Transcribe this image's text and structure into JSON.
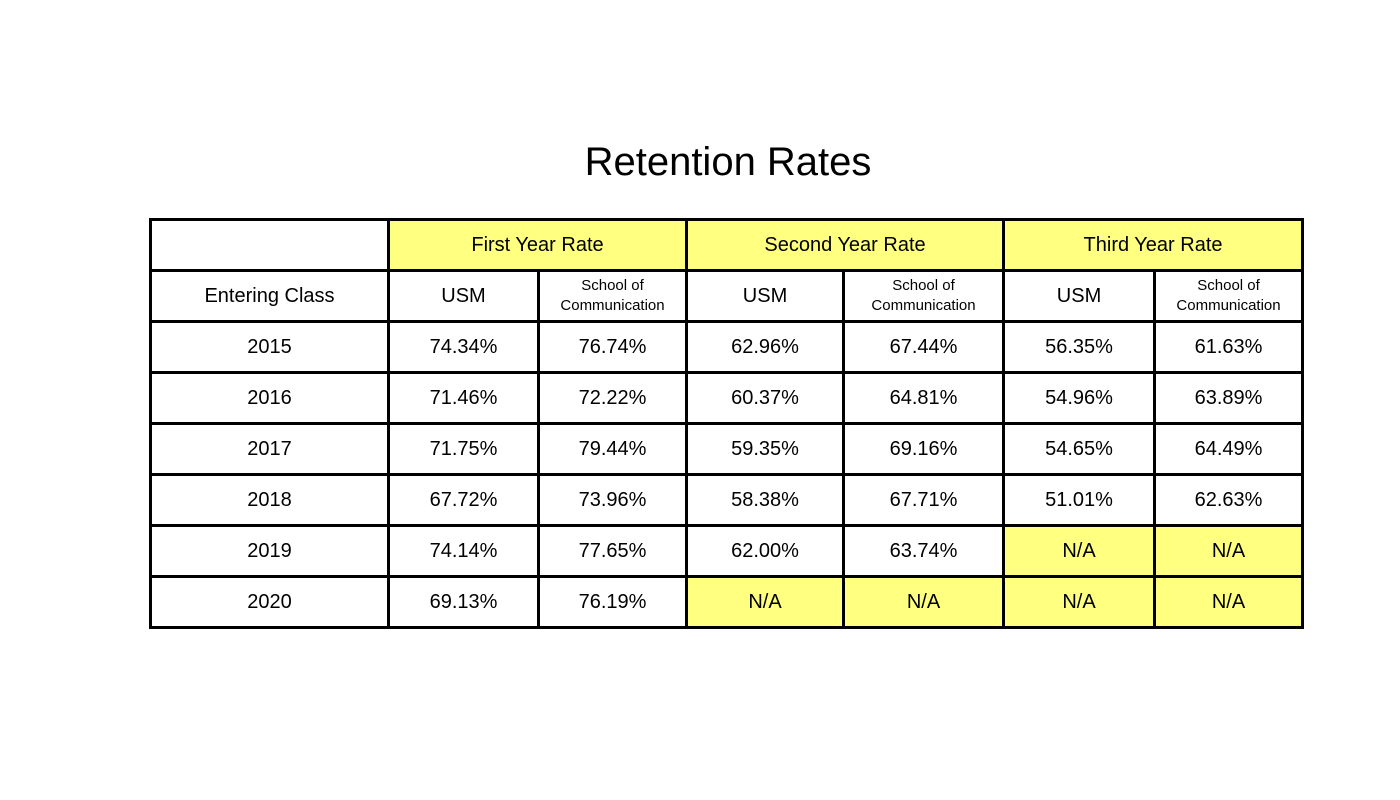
{
  "title": "Retention Rates",
  "header": {
    "corner": "",
    "groups": [
      "First Year Rate",
      "Second Year Rate",
      "Third Year Rate"
    ],
    "row_label": "Entering Class",
    "sub_usm": "USM",
    "sub_soc": "School of Communication"
  },
  "na_label": "N/A",
  "highlight_color": "#ffff80",
  "rows": [
    {
      "year": "2015",
      "values": [
        "74.34%",
        "76.74%",
        "62.96%",
        "67.44%",
        "56.35%",
        "61.63%"
      ]
    },
    {
      "year": "2016",
      "values": [
        "71.46%",
        "72.22%",
        "60.37%",
        "64.81%",
        "54.96%",
        "63.89%"
      ]
    },
    {
      "year": "2017",
      "values": [
        "71.75%",
        "79.44%",
        "59.35%",
        "69.16%",
        "54.65%",
        "64.49%"
      ]
    },
    {
      "year": "2018",
      "values": [
        "67.72%",
        "73.96%",
        "58.38%",
        "67.71%",
        "51.01%",
        "62.63%"
      ]
    },
    {
      "year": "2019",
      "values": [
        "74.14%",
        "77.65%",
        "62.00%",
        "63.74%",
        "N/A",
        "N/A"
      ]
    },
    {
      "year": "2020",
      "values": [
        "69.13%",
        "76.19%",
        "N/A",
        "N/A",
        "N/A",
        "N/A"
      ]
    }
  ]
}
